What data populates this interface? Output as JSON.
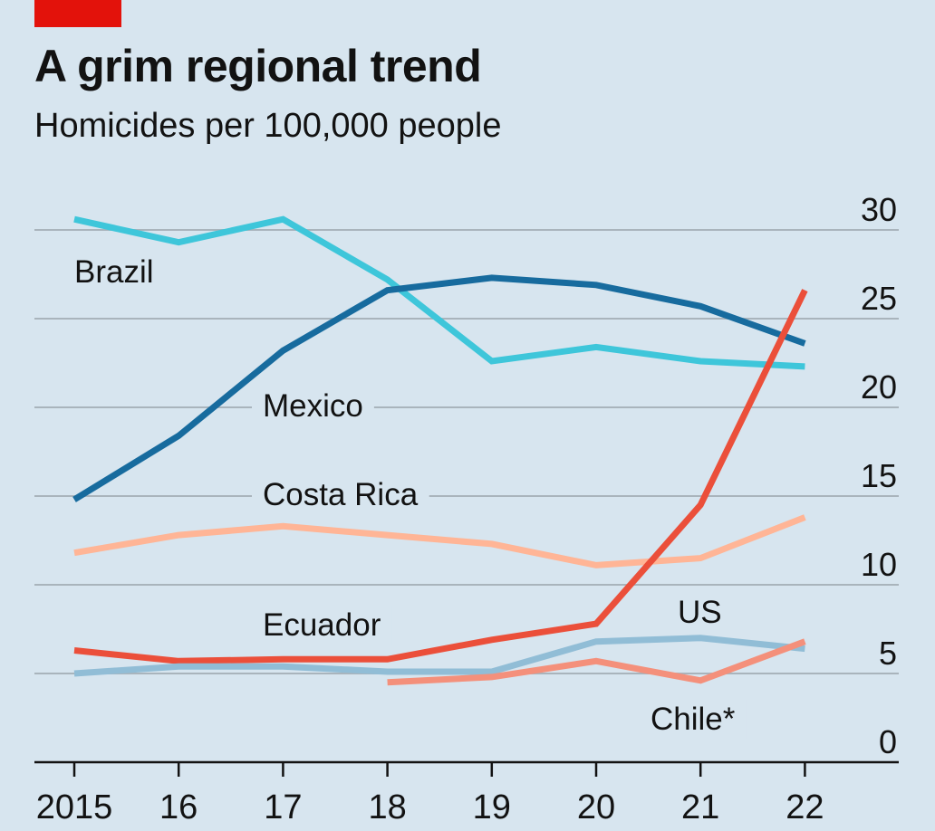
{
  "title": "A grim regional trend",
  "subtitle": "Homicides per 100,000 people",
  "chart_data": {
    "type": "line",
    "title": "A grim regional trend",
    "subtitle": "Homicides per 100,000 people",
    "x": [
      "2015",
      "2016",
      "2017",
      "2018",
      "2019",
      "2020",
      "2021",
      "2022"
    ],
    "x_tick_labels": [
      "2015",
      "16",
      "17",
      "18",
      "19",
      "20",
      "21",
      "22"
    ],
    "y_ticks": [
      "0",
      "5",
      "10",
      "15",
      "20",
      "25",
      "30"
    ],
    "ylim": [
      0,
      30
    ],
    "grid": true,
    "series": [
      {
        "name": "Brazil",
        "color": "#3ec6da",
        "values": [
          30.6,
          29.3,
          30.6,
          27.2,
          22.6,
          23.4,
          22.6,
          22.3
        ]
      },
      {
        "name": "Mexico",
        "color": "#176b9e",
        "values": [
          14.8,
          18.4,
          23.2,
          26.6,
          27.3,
          26.9,
          25.7,
          23.6
        ]
      },
      {
        "name": "Costa Rica",
        "color": "#ffb596",
        "values": [
          11.8,
          12.8,
          13.3,
          12.8,
          12.3,
          11.1,
          11.5,
          13.8
        ]
      },
      {
        "name": "Ecuador",
        "color": "#eb4f3a",
        "values": [
          6.3,
          5.7,
          5.8,
          5.8,
          6.9,
          7.8,
          14.5,
          26.6
        ]
      },
      {
        "name": "US",
        "color": "#91bdd6",
        "values": [
          5.0,
          5.4,
          5.4,
          5.1,
          5.1,
          6.8,
          7.0,
          6.4
        ]
      },
      {
        "name": "Chile*",
        "color": "#f4907b",
        "values": [
          null,
          null,
          null,
          4.5,
          4.8,
          5.7,
          4.6,
          6.8
        ]
      }
    ]
  }
}
